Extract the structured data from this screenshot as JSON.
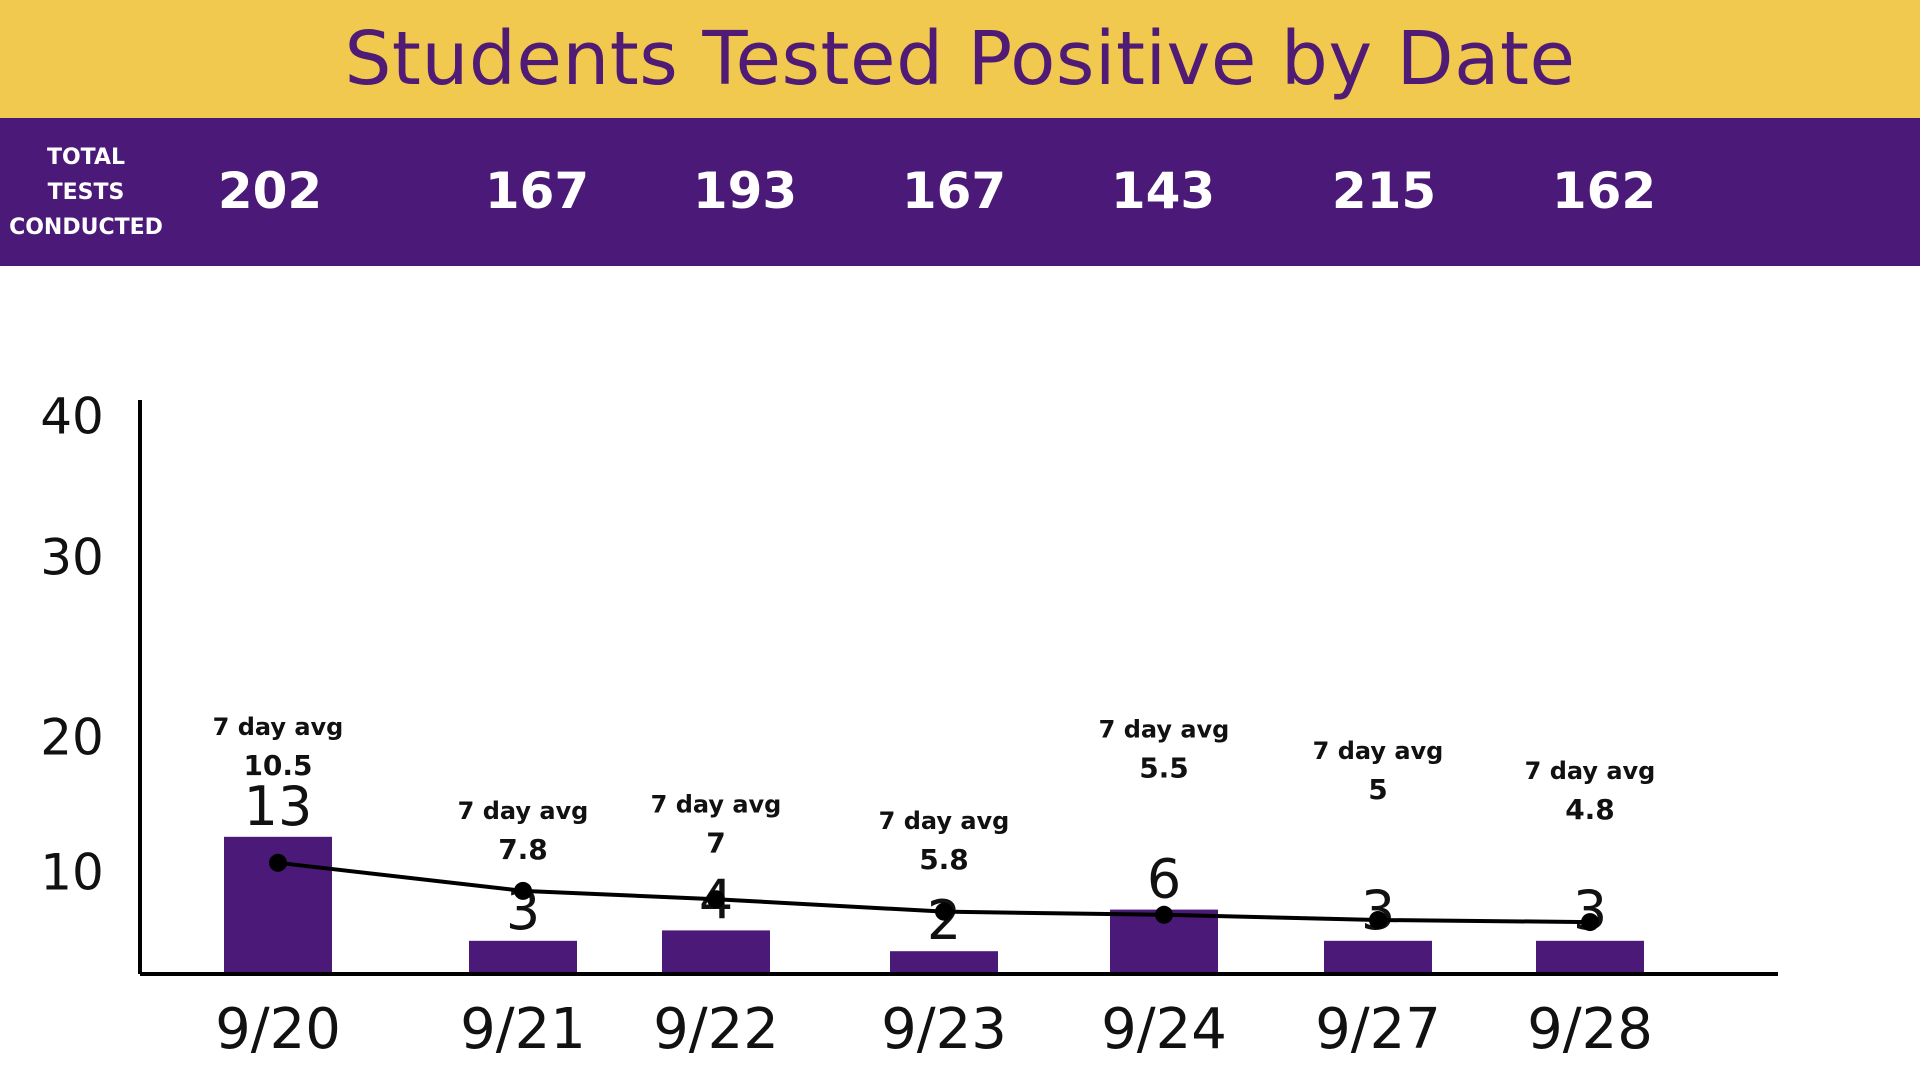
{
  "title": "Students Tested Positive by Date",
  "tests_label": [
    "TOTAL",
    "TESTS",
    "CONDUCTED"
  ],
  "colors": {
    "banner": "#f2c94f",
    "purple": "#4b1a79",
    "title_text": "#4f1b75",
    "line": "#000000"
  },
  "chart_data": {
    "type": "bar",
    "title": "Students Tested Positive by Date",
    "xlabel": "",
    "ylabel": "",
    "categories": [
      "9/20",
      "9/21",
      "9/22",
      "9/23",
      "9/24",
      "9/27",
      "9/28"
    ],
    "total_tests": [
      "202",
      "167",
      "193",
      "167",
      "143",
      "215",
      "162"
    ],
    "series": [
      {
        "values": [
          13,
          3,
          4,
          2,
          6,
          3,
          3
        ],
        "labels": [
          "13",
          "3",
          "4",
          "2",
          "6",
          "3",
          "3"
        ]
      },
      {
        "type": "line",
        "values": [
          10.5,
          7.8,
          7,
          5.8,
          5.5,
          5,
          4.8
        ],
        "labels": [
          "10.5",
          "7.8",
          "7",
          "5.8",
          "5.5",
          "5",
          "4.8"
        ]
      }
    ],
    "avg_caption": "7 day avg",
    "yticks": [
      "10",
      "20",
      "30",
      "40"
    ],
    "ylim": [
      0,
      40
    ],
    "grid": false
  }
}
